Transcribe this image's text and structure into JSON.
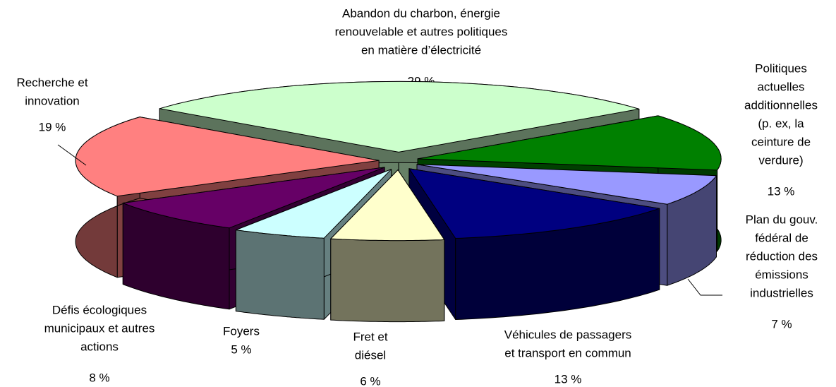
{
  "chart_data": {
    "type": "pie",
    "categories": [
      [
        "Abandon du charbon, énergie",
        "renouvelable et autres politiques",
        "en matière d’électricité"
      ],
      [
        "Politiques",
        "actuelles",
        "additionnelles",
        "(p. ex, la",
        "ceinture de",
        "verdure)"
      ],
      [
        "Plan du gouv.",
        "fédéral de",
        "réduction des",
        "émissions",
        "industrielles"
      ],
      [
        "Véhicules de passagers",
        "et transport en commun"
      ],
      [
        "Fret et",
        "diésel"
      ],
      [
        "Foyers"
      ],
      [
        "Défis écologiques",
        "municipaux et autres",
        "actions"
      ],
      [
        "Recherche et",
        "innovation"
      ]
    ],
    "values": [
      29,
      13,
      7,
      13,
      6,
      5,
      8,
      19
    ],
    "value_labels": [
      "29 %",
      "13 %",
      "7 %",
      "13 %",
      "6 %",
      "5 %",
      "8 %",
      "19 %"
    ],
    "colors": [
      "#ccffcc",
      "#008000",
      "#9999ff",
      "#000080",
      "#ffffcc",
      "#ccffff",
      "#660066",
      "#ff8080"
    ]
  }
}
